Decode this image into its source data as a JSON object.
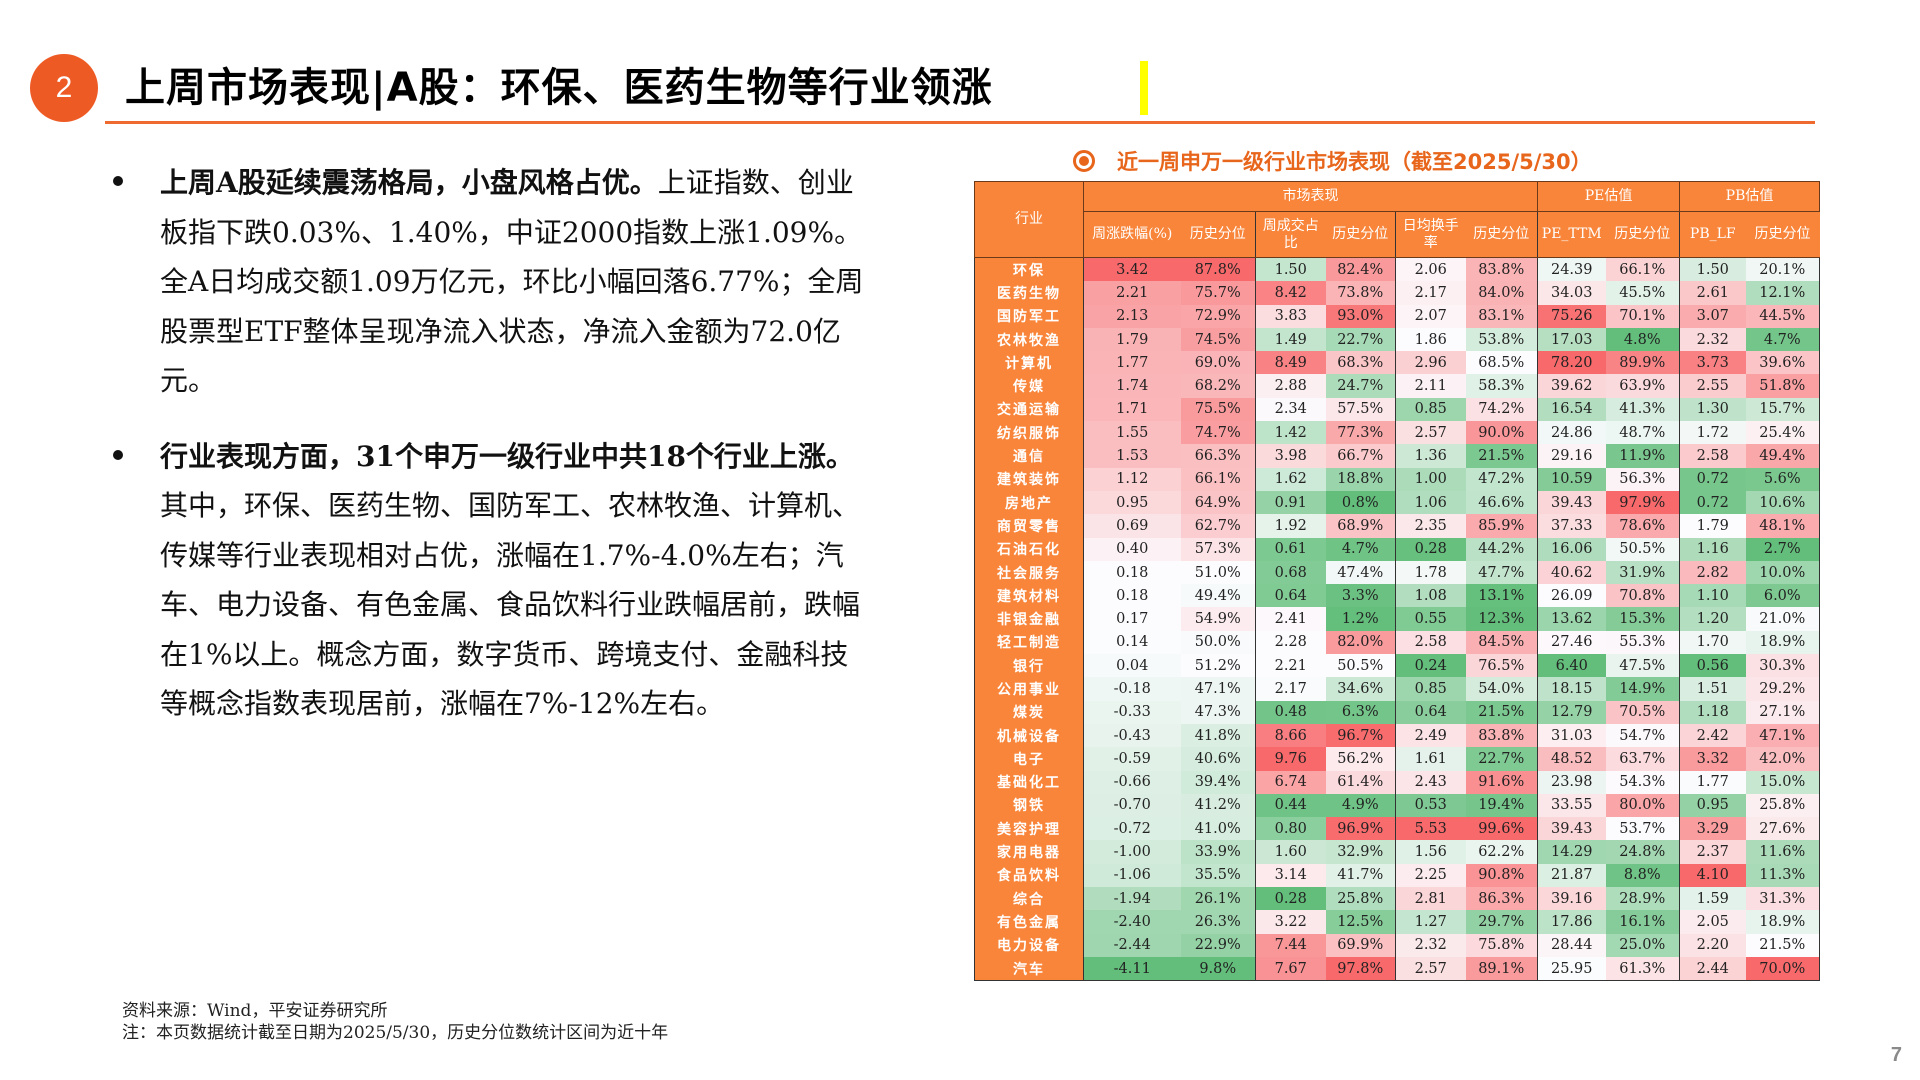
{
  "header": {
    "section_number": "2",
    "title": "上周市场表现|A股：环保、医药生物等行业领涨"
  },
  "body": {
    "bullets": [
      {
        "bold": "上周A股延续震荡格局，小盘风格占优。",
        "text": "上证指数、创业板指下跌0.03%、1.40%，中证2000指数上涨1.09%。全A日均成交额1.09万亿元，环比小幅回落6.77%；全周股票型ETF整体呈现净流入状态，净流入金额为72.0亿元。"
      },
      {
        "bold": "行业表现方面，31个申万一级行业中共18个行业上涨。",
        "text": "其中，环保、医药生物、国防军工、农林牧渔、计算机、传媒等行业表现相对占优，涨幅在1.7%-4.0%左右；汽车、电力设备、有色金属、食品饮料行业跌幅居前，跌幅在1%以上。概念方面，数字货币、跨境支付、金融科技等概念指数表现居前，涨幅在7%-12%左右。"
      }
    ],
    "source": "资料来源：Wind，平安证券研究所",
    "note": "注：本页数据统计截至日期为2025/5/30，历史分位数统计区间为近十年"
  },
  "table": {
    "title": "近一周申万一级行业市场表现（截至2025/5/30）",
    "icon": "target-ring-icon",
    "header_row1": {
      "industry": "行业",
      "market": "市场表现",
      "pe": "PE估值",
      "pb": "PB估值"
    },
    "header_row2": [
      "周涨跌幅(%)",
      "历史分位",
      "周成交占比",
      "历史分位",
      "日均换手率",
      "历史分位",
      "PE_TTM",
      "历史分位",
      "PB_LF",
      "历史分位"
    ],
    "colors": {
      "high": "#F8696B",
      "mid": "#FCFCFF",
      "low": "#63BE7B",
      "header_bg": "#F8853A"
    },
    "rows": [
      [
        "环保",
        "3.42",
        "87.8%",
        "1.50",
        "82.4%",
        "2.06",
        "83.8%",
        "24.39",
        "66.1%",
        "1.50",
        "20.1%"
      ],
      [
        "医药生物",
        "2.21",
        "75.7%",
        "8.42",
        "73.8%",
        "2.17",
        "84.0%",
        "34.03",
        "45.5%",
        "2.61",
        "12.1%"
      ],
      [
        "国防军工",
        "2.13",
        "72.9%",
        "3.83",
        "93.0%",
        "2.07",
        "83.1%",
        "75.26",
        "70.1%",
        "3.07",
        "44.5%"
      ],
      [
        "农林牧渔",
        "1.79",
        "74.5%",
        "1.49",
        "22.7%",
        "1.86",
        "53.8%",
        "17.03",
        "4.8%",
        "2.32",
        "4.7%"
      ],
      [
        "计算机",
        "1.77",
        "69.0%",
        "8.49",
        "68.3%",
        "2.96",
        "68.5%",
        "78.20",
        "89.9%",
        "3.73",
        "39.6%"
      ],
      [
        "传媒",
        "1.74",
        "68.2%",
        "2.88",
        "24.7%",
        "2.11",
        "58.3%",
        "39.62",
        "63.9%",
        "2.55",
        "51.8%"
      ],
      [
        "交通运输",
        "1.71",
        "75.5%",
        "2.34",
        "57.5%",
        "0.85",
        "74.2%",
        "16.54",
        "41.3%",
        "1.30",
        "15.7%"
      ],
      [
        "纺织服饰",
        "1.55",
        "74.7%",
        "1.42",
        "77.3%",
        "2.57",
        "90.0%",
        "24.86",
        "48.7%",
        "1.72",
        "25.4%"
      ],
      [
        "通信",
        "1.53",
        "66.3%",
        "3.98",
        "66.7%",
        "1.36",
        "21.5%",
        "29.16",
        "11.9%",
        "2.58",
        "49.4%"
      ],
      [
        "建筑装饰",
        "1.12",
        "66.1%",
        "1.62",
        "18.8%",
        "1.00",
        "47.2%",
        "10.59",
        "56.3%",
        "0.72",
        "5.6%"
      ],
      [
        "房地产",
        "0.95",
        "64.9%",
        "0.91",
        "0.8%",
        "1.06",
        "46.6%",
        "39.43",
        "97.9%",
        "0.72",
        "10.6%"
      ],
      [
        "商贸零售",
        "0.69",
        "62.7%",
        "1.92",
        "68.9%",
        "2.35",
        "85.9%",
        "37.33",
        "78.6%",
        "1.79",
        "48.1%"
      ],
      [
        "石油石化",
        "0.40",
        "57.3%",
        "0.61",
        "4.7%",
        "0.28",
        "44.2%",
        "16.06",
        "50.5%",
        "1.16",
        "2.7%"
      ],
      [
        "社会服务",
        "0.18",
        "51.0%",
        "0.68",
        "47.4%",
        "1.78",
        "47.7%",
        "40.62",
        "31.9%",
        "2.82",
        "10.0%"
      ],
      [
        "建筑材料",
        "0.18",
        "49.4%",
        "0.64",
        "3.3%",
        "1.08",
        "13.1%",
        "26.09",
        "70.8%",
        "1.10",
        "6.0%"
      ],
      [
        "非银金融",
        "0.17",
        "54.9%",
        "2.41",
        "1.2%",
        "0.55",
        "12.3%",
        "13.62",
        "15.3%",
        "1.20",
        "21.0%"
      ],
      [
        "轻工制造",
        "0.14",
        "50.0%",
        "2.28",
        "82.0%",
        "2.58",
        "84.5%",
        "27.46",
        "55.3%",
        "1.70",
        "18.9%"
      ],
      [
        "银行",
        "0.04",
        "51.2%",
        "2.21",
        "50.5%",
        "0.24",
        "76.5%",
        "6.40",
        "47.5%",
        "0.56",
        "30.3%"
      ],
      [
        "公用事业",
        "-0.18",
        "47.1%",
        "2.17",
        "34.6%",
        "0.85",
        "54.0%",
        "18.15",
        "14.9%",
        "1.51",
        "29.2%"
      ],
      [
        "煤炭",
        "-0.33",
        "47.3%",
        "0.48",
        "6.3%",
        "0.64",
        "21.5%",
        "12.79",
        "70.5%",
        "1.18",
        "27.1%"
      ],
      [
        "机械设备",
        "-0.43",
        "41.8%",
        "8.66",
        "96.7%",
        "2.49",
        "83.8%",
        "31.03",
        "54.7%",
        "2.42",
        "47.1%"
      ],
      [
        "电子",
        "-0.59",
        "40.6%",
        "9.76",
        "56.2%",
        "1.61",
        "22.7%",
        "48.52",
        "63.7%",
        "3.32",
        "42.0%"
      ],
      [
        "基础化工",
        "-0.66",
        "39.4%",
        "6.74",
        "61.4%",
        "2.43",
        "91.6%",
        "23.98",
        "54.3%",
        "1.77",
        "15.0%"
      ],
      [
        "钢铁",
        "-0.70",
        "41.2%",
        "0.44",
        "4.9%",
        "0.53",
        "19.4%",
        "33.55",
        "80.0%",
        "0.95",
        "25.8%"
      ],
      [
        "美容护理",
        "-0.72",
        "41.0%",
        "0.80",
        "96.9%",
        "5.53",
        "99.6%",
        "39.43",
        "53.7%",
        "3.29",
        "27.6%"
      ],
      [
        "家用电器",
        "-1.00",
        "33.9%",
        "1.60",
        "32.9%",
        "1.56",
        "62.2%",
        "14.29",
        "24.8%",
        "2.37",
        "11.6%"
      ],
      [
        "食品饮料",
        "-1.06",
        "35.5%",
        "3.14",
        "41.7%",
        "2.25",
        "90.8%",
        "21.87",
        "8.8%",
        "4.10",
        "11.3%"
      ],
      [
        "综合",
        "-1.94",
        "26.1%",
        "0.28",
        "25.8%",
        "2.81",
        "86.3%",
        "39.16",
        "28.9%",
        "1.59",
        "31.3%"
      ],
      [
        "有色金属",
        "-2.40",
        "26.3%",
        "3.22",
        "12.5%",
        "1.27",
        "29.7%",
        "17.86",
        "16.1%",
        "2.05",
        "18.9%"
      ],
      [
        "电力设备",
        "-2.44",
        "22.9%",
        "7.44",
        "69.9%",
        "2.32",
        "75.8%",
        "28.44",
        "25.0%",
        "2.20",
        "21.5%"
      ],
      [
        "汽车",
        "-4.11",
        "9.8%",
        "7.67",
        "97.8%",
        "2.57",
        "89.1%",
        "25.95",
        "61.3%",
        "2.44",
        "70.0%"
      ]
    ]
  },
  "footer": {
    "page_number": "7"
  }
}
